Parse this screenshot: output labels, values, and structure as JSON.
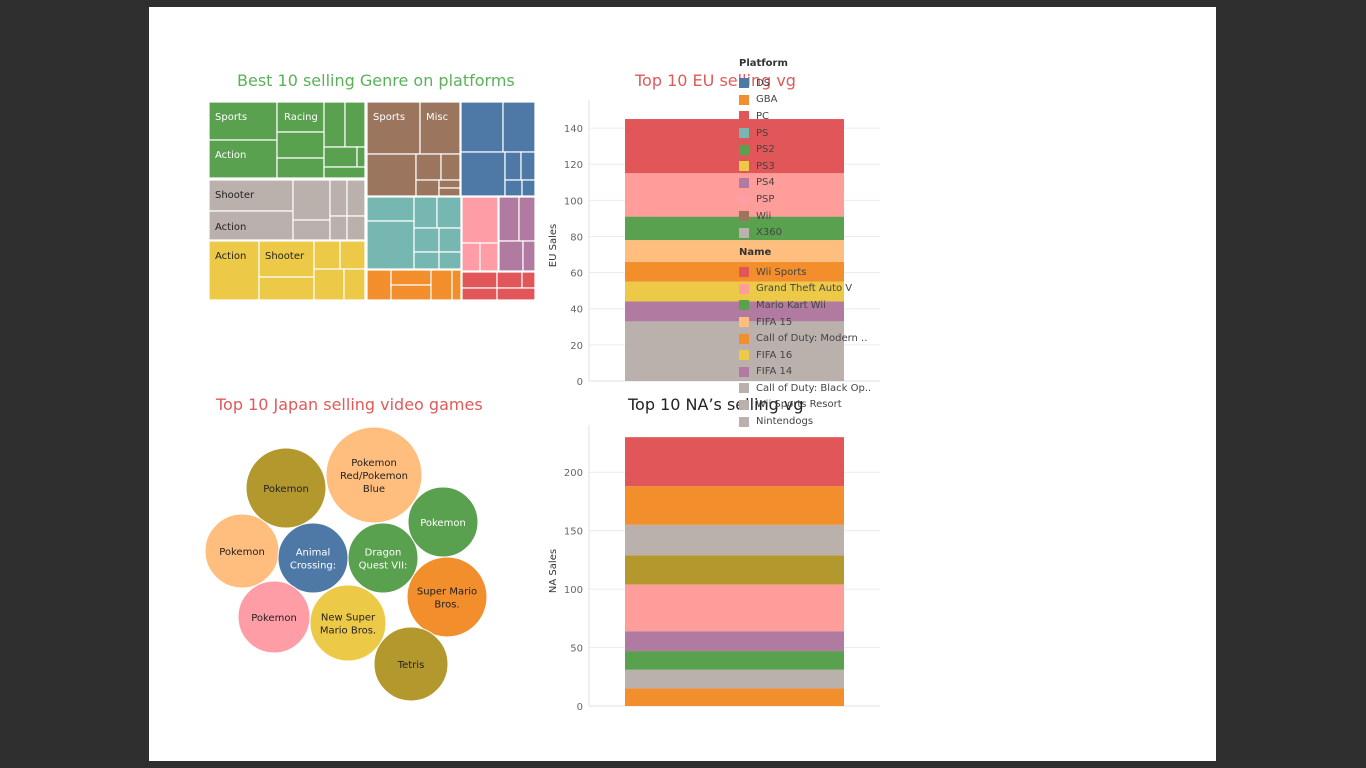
{
  "dashboard": {
    "treemap_title": "Best 10 selling Genre on platforms",
    "bubble_title": "Top 10 Japan selling video games",
    "eu_title": "Top 10 EU selling vg",
    "na_title": "Top 10 NA’s selling vg"
  },
  "colors": {
    "DS": "#4e79a7",
    "GBA": "#f28e2b",
    "PC": "#e15759",
    "PS": "#76b7b2",
    "PS2": "#59a14f",
    "PS3": "#edc948",
    "PS4": "#b07aa1",
    "PSP": "#ff9da7",
    "Wii": "#9c755f",
    "X360": "#bab0ac",
    "Wii Sports": "#e15759",
    "Grand Theft Auto V": "#ff9d9a",
    "Mario Kart Wii": "#59a14f",
    "FIFA 15": "#ffbe7d",
    "Call of Duty: Modern ..": "#f28e2b",
    "FIFA 16": "#edc948",
    "FIFA 14": "#b07aa1",
    "Call of Duty: Black Op..": "#bab0ac",
    "Wii Sports Resort": "#bab0ac",
    "Nintendogs": "#bab0ac",
    "olive": "#b3982e"
  },
  "legend": {
    "platform_title": "Platform",
    "platforms": [
      "DS",
      "GBA",
      "PC",
      "PS",
      "PS2",
      "PS3",
      "PS4",
      "PSP",
      "Wii",
      "X360"
    ],
    "name_title": "Name",
    "names": [
      "Wii Sports",
      "Grand Theft Auto V",
      "Mario Kart Wii",
      "FIFA 15",
      "Call of Duty: Modern ..",
      "FIFA 16",
      "FIFA 14",
      "Call of Duty: Black Op..",
      "Wii Sports Resort",
      "Nintendogs"
    ]
  },
  "chart_data": [
    {
      "type": "treemap",
      "title": "Best 10 selling Genre on platforms",
      "labels": {
        "PS2": [
          "Sports",
          "Racing",
          "Action"
        ],
        "X360": [
          "Shooter",
          "Action"
        ],
        "PS3": [
          "Action",
          "Shooter"
        ],
        "Wii": [
          "Sports",
          "Misc"
        ]
      }
    },
    {
      "type": "bubble",
      "title": "Top 10 Japan selling video games",
      "bubbles": [
        {
          "label": "Pokemon",
          "color_key": "olive"
        },
        {
          "label": "Pokemon Red/Pokemon Blue",
          "color_key": "FIFA 15"
        },
        {
          "label": "Pokemon",
          "color_key": "FIFA 15"
        },
        {
          "label": "Animal Crossing:",
          "color_key": "DS"
        },
        {
          "label": "Dragon Quest VII:",
          "color_key": "PS2"
        },
        {
          "label": "Pokemon",
          "color_key": "PS2"
        },
        {
          "label": "Pokemon",
          "color_key": "PSP"
        },
        {
          "label": "New Super Mario Bros.",
          "color_key": "PS3"
        },
        {
          "label": "Super Mario Bros.",
          "color_key": "GBA"
        },
        {
          "label": "Tetris",
          "color_key": "olive"
        }
      ]
    },
    {
      "type": "bar",
      "stacked": true,
      "title": "Top 10 EU selling vg",
      "ylabel": "EU Sales",
      "ylim": [
        0,
        150
      ],
      "yticks": [
        0,
        20,
        40,
        60,
        80,
        100,
        120,
        140
      ],
      "series": [
        {
          "color_key": "Nintendogs",
          "value": 33
        },
        {
          "color_key": "FIFA 14",
          "value": 11
        },
        {
          "color_key": "FIFA 16",
          "value": 11
        },
        {
          "color_key": "Call of Duty: Modern ..",
          "value": 11
        },
        {
          "color_key": "FIFA 15",
          "value": 12
        },
        {
          "color_key": "Mario Kart Wii",
          "value": 13
        },
        {
          "color_key": "Grand Theft Auto V",
          "value": 24
        },
        {
          "color_key": "Wii Sports",
          "value": 30
        }
      ]
    },
    {
      "type": "bar",
      "stacked": true,
      "title": "Top 10 NA’s selling vg",
      "ylabel": "NA Sales",
      "ylim": [
        0,
        230
      ],
      "yticks": [
        0,
        50,
        100,
        150,
        200
      ],
      "series": [
        {
          "color_key": "Call of Duty: Modern ..",
          "value": 15
        },
        {
          "color_key": "Wii Sports Resort",
          "value": 16
        },
        {
          "color_key": "Mario Kart Wii",
          "value": 16
        },
        {
          "color_key": "FIFA 14",
          "value": 17
        },
        {
          "color_key": "Grand Theft Auto V",
          "value": 40
        },
        {
          "color_key": "olive",
          "value": 25
        },
        {
          "color_key": "Call of Duty: Black Op..",
          "value": 26
        },
        {
          "color_key": "Call of Duty: Modern ..",
          "value": 33
        },
        {
          "color_key": "Wii Sports",
          "value": 42
        }
      ]
    }
  ]
}
